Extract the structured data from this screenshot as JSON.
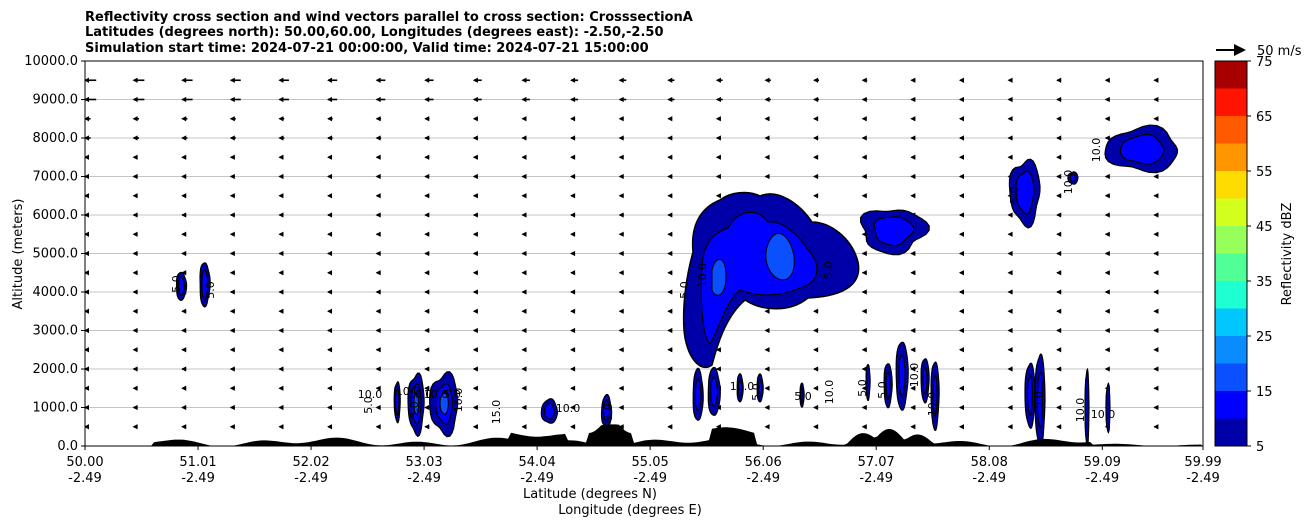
{
  "chart_data": {
    "type": "contour",
    "title_lines": [
      "Reflectivity cross section and wind vectors parallel to cross section: CrosssectionA",
      "Latitudes (degrees north): 50.00,60.00, Longitudes (degrees east): -2.50,-2.50",
      "Simulation start time: 2024-07-21 00:00:00, Valid time: 2024-07-21 15:00:00"
    ],
    "xlabel": "Latitude (degrees N)",
    "xlabel2": "Longitude (degrees E)",
    "ylabel": "Altitude (meters)",
    "xlim": [
      50.0,
      59.99
    ],
    "ylim": [
      0,
      10000
    ],
    "x_ticks": [
      {
        "lat": "50.00",
        "lon": "-2.49",
        "value": 50.0
      },
      {
        "lat": "51.01",
        "lon": "-2.49",
        "value": 51.01
      },
      {
        "lat": "52.02",
        "lon": "-2.49",
        "value": 52.02
      },
      {
        "lat": "53.03",
        "lon": "-2.49",
        "value": 53.03
      },
      {
        "lat": "54.04",
        "lon": "-2.49",
        "value": 54.04
      },
      {
        "lat": "55.05",
        "lon": "-2.49",
        "value": 55.05
      },
      {
        "lat": "56.06",
        "lon": "-2.49",
        "value": 56.06
      },
      {
        "lat": "57.07",
        "lon": "-2.49",
        "value": 57.07
      },
      {
        "lat": "58.08",
        "lon": "-2.49",
        "value": 58.08
      },
      {
        "lat": "59.09",
        "lon": "-2.49",
        "value": 59.09
      },
      {
        "lat": "59.99",
        "lon": "-2.49",
        "value": 59.99
      }
    ],
    "y_ticks": [
      "0.0",
      "1000.0",
      "2000.0",
      "3000.0",
      "4000.0",
      "5000.0",
      "6000.0",
      "7000.0",
      "8000.0",
      "9000.0",
      "10000.0"
    ],
    "grid": "horizontal",
    "vector_key": "50 m/s",
    "colorbar": {
      "label": "Reflectivity dBZ",
      "levels": [
        5,
        10,
        15,
        20,
        25,
        30,
        35,
        40,
        45,
        50,
        55,
        60,
        65,
        70,
        75
      ],
      "tick_labels": [
        "5",
        "15",
        "25",
        "35",
        "45",
        "55",
        "65",
        "75"
      ],
      "colors": [
        "#0000a8",
        "#0000ff",
        "#0a50ff",
        "#0a8cff",
        "#00c8ff",
        "#1effd2",
        "#50ff96",
        "#96ff5a",
        "#d2ff1e",
        "#ffdc00",
        "#ff9600",
        "#ff5a00",
        "#ff1400",
        "#a80000"
      ]
    },
    "contour_labels": [
      "5.0",
      "5.0",
      "10.0",
      "5.0",
      "10.0",
      "10.0",
      "5.0",
      "10.0",
      "5.0",
      "10.0",
      "15.0",
      "10.0",
      "5.0",
      "5.0",
      "10.0",
      "5.0",
      "10.0",
      "5.0",
      "5.0",
      "10.0",
      "5.0",
      "5.0",
      "10.0",
      "10.0",
      "5.0",
      "5.0",
      "10.0",
      "10.0",
      "10.0",
      "10.0"
    ],
    "cells": [
      {
        "lat": 50.86,
        "alt": 4150,
        "max_dbz": 10
      },
      {
        "lat": 51.07,
        "alt": 4200,
        "max_dbz": 10
      },
      {
        "lat": 52.79,
        "alt": 1150,
        "max_dbz": 10
      },
      {
        "lat": 52.96,
        "alt": 1100,
        "max_dbz": 15
      },
      {
        "lat": 53.21,
        "alt": 1100,
        "max_dbz": 15
      },
      {
        "lat": 54.15,
        "alt": 900,
        "max_dbz": 10
      },
      {
        "lat": 54.66,
        "alt": 900,
        "max_dbz": 10
      },
      {
        "lat": 55.75,
        "alt": 4300,
        "max_dbz": 15
      },
      {
        "lat": 57.22,
        "alt": 5600,
        "max_dbz": 10
      },
      {
        "lat": 58.4,
        "alt": 6600,
        "max_dbz": 10
      },
      {
        "lat": 59.45,
        "alt": 7700,
        "max_dbz": 10
      }
    ],
    "wind_levels_m": [
      500,
      1000,
      1500,
      2000,
      2500,
      3000,
      3500,
      4000,
      4500,
      5000,
      5500,
      6000,
      6500,
      7000,
      7500,
      8000,
      8500,
      9000,
      9500
    ],
    "wind_max_magnitude_mps": 50,
    "terrain_max_m": 560
  }
}
